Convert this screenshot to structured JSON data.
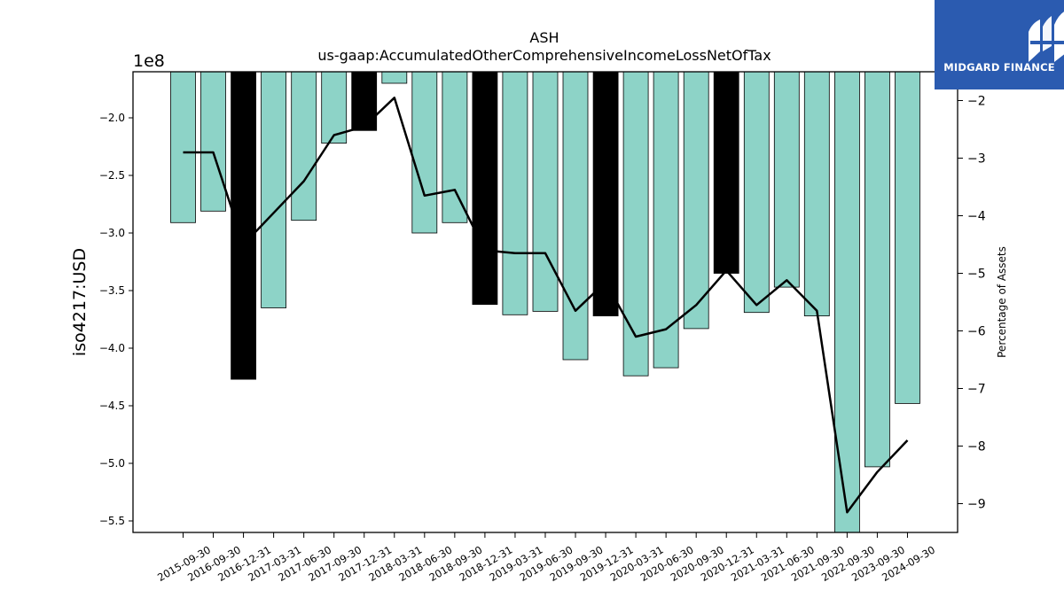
{
  "logo": {
    "brand": "MIDGARD FINANCE",
    "icon": "midgard-logo-icon",
    "color": "#2b5bb0"
  },
  "chart_data": {
    "type": "bar",
    "title": "ASH",
    "subtitle": "us-gaap:AccumulatedOtherComprehensiveIncomeLossNetOfTax",
    "ylabel": "iso4217:USD",
    "y2label": "Percentage of Assets",
    "y_offset_label": "1e8",
    "ylim": [
      -5.6,
      -1.6
    ],
    "y2lim": [
      -9.5,
      -1.5
    ],
    "yticks": [
      -2.0,
      -2.5,
      -3.0,
      -3.5,
      -4.0,
      -4.5,
      -5.0,
      -5.5
    ],
    "ytick_labels": [
      "−2.0",
      "−2.5",
      "−3.0",
      "−3.5",
      "−4.0",
      "−4.5",
      "−5.0",
      "−5.5"
    ],
    "y2ticks": [
      -2,
      -3,
      -4,
      -5,
      -6,
      -7,
      -8,
      -9
    ],
    "y2tick_labels": [
      "−2",
      "−3",
      "−4",
      "−5",
      "−6",
      "−7",
      "−8",
      "−9"
    ],
    "categories": [
      "2015-09-30",
      "2016-09-30",
      "2016-12-31",
      "2017-03-31",
      "2017-06-30",
      "2017-09-30",
      "2017-12-31",
      "2018-03-31",
      "2018-06-30",
      "2018-09-30",
      "2018-12-31",
      "2019-03-31",
      "2019-06-30",
      "2019-09-30",
      "2019-12-31",
      "2020-03-31",
      "2020-06-30",
      "2020-09-30",
      "2020-12-31",
      "2021-03-31",
      "2021-06-30",
      "2021-09-30",
      "2022-09-30",
      "2023-09-30",
      "2024-09-30"
    ],
    "series": [
      {
        "values": [
          -2.91,
          -2.81,
          -4.27,
          -3.65,
          -2.89,
          -2.22,
          -2.11,
          -1.7,
          -3.0,
          -2.91,
          -3.62,
          -3.71,
          -3.68,
          -4.1,
          -3.72,
          -4.24,
          -4.17,
          -3.83,
          -3.35,
          -3.69,
          -3.47,
          -3.72,
          -5.6,
          -5.03,
          -4.48
        ],
        "highlight": [
          false,
          false,
          true,
          false,
          false,
          false,
          true,
          false,
          false,
          false,
          true,
          false,
          false,
          false,
          true,
          false,
          false,
          false,
          true,
          false,
          false,
          false,
          false,
          false,
          false
        ],
        "color": "#8dd3c7",
        "highlight_color": "#000000"
      },
      {
        "axis": "right",
        "values": [
          -2.9,
          -2.9,
          -4.5,
          -3.95,
          -3.4,
          -2.6,
          -2.45,
          -1.95,
          -3.65,
          -3.55,
          -4.6,
          -4.65,
          -4.65,
          -5.65,
          -5.15,
          -6.1,
          -5.97,
          -5.55,
          -4.95,
          -5.55,
          -5.12,
          -5.65,
          -9.15,
          -8.45,
          -7.9
        ],
        "color": "#000000"
      }
    ],
    "grid": false,
    "legend": "none"
  }
}
